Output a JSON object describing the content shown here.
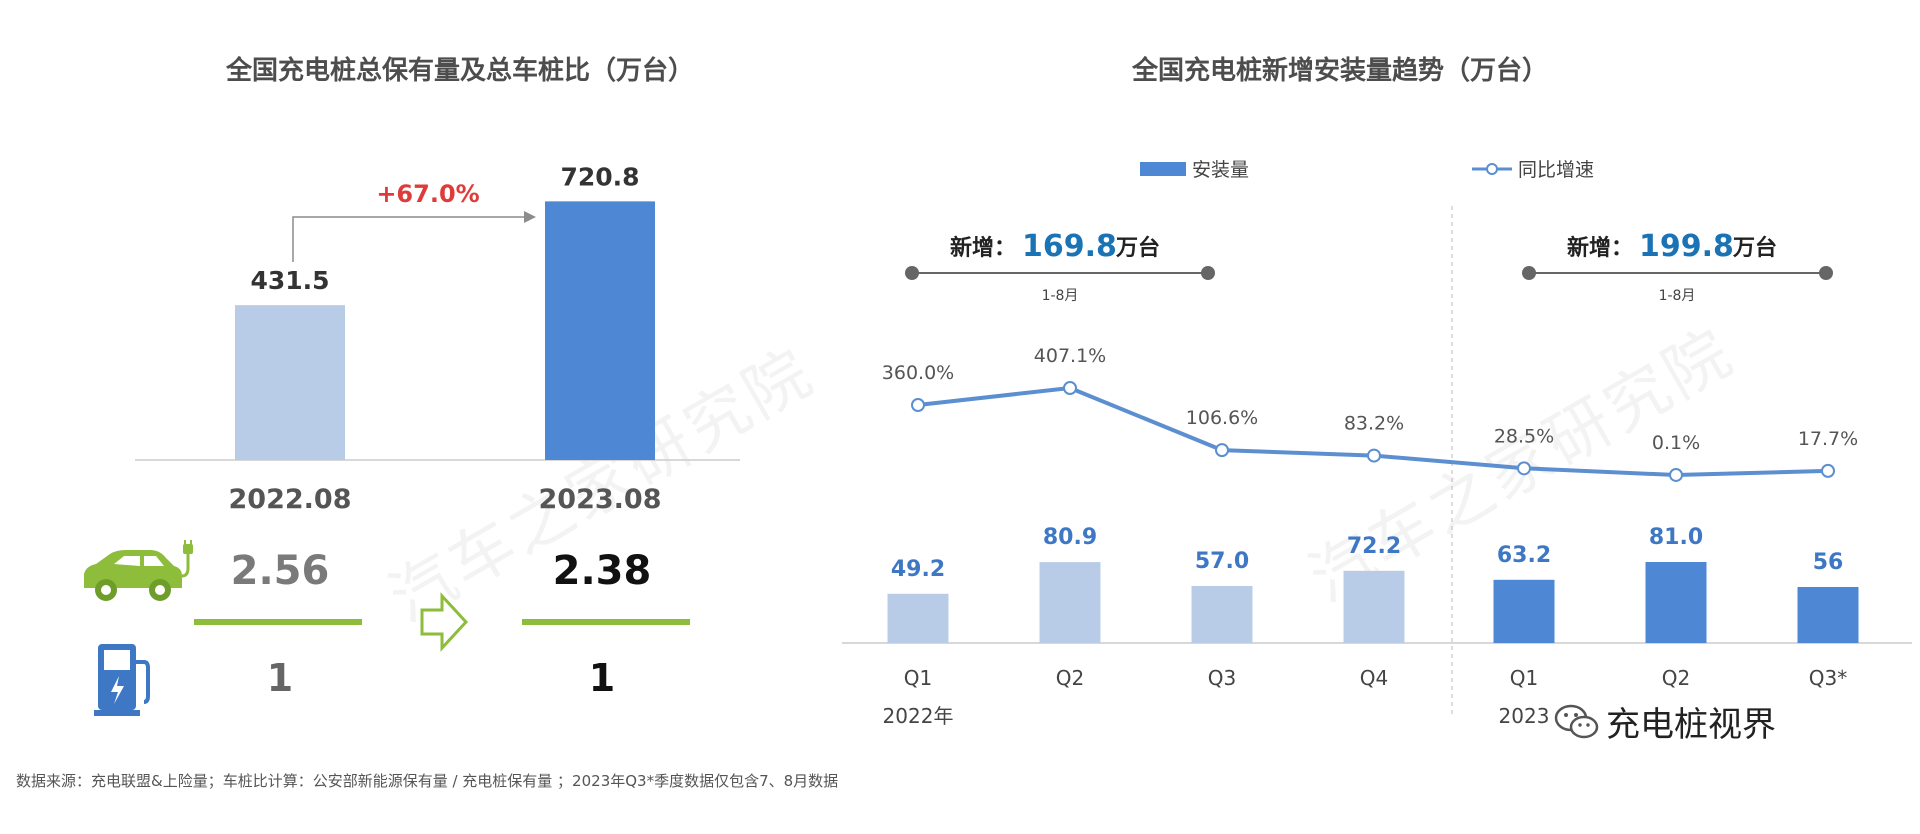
{
  "left_panel": {
    "title": "全国充电桩总保有量及总车桩比（万台）",
    "growth_label": "+67.0%",
    "ratio": {
      "before_value": "2.56",
      "after_value": "2.38",
      "before_base": "1",
      "after_base": "1"
    }
  },
  "right_panel": {
    "title": "全国充电桩新增安装量趋势（万台）",
    "year_2022": "2022年",
    "year_2023_partial": "2023",
    "summary_2022": {
      "prefix": "新增：",
      "value": "169.8",
      "unit": "万台",
      "period": "1-8月"
    },
    "summary_2023": {
      "prefix": "新增：",
      "value": "199.8",
      "unit": "万台",
      "period": "1-8月"
    }
  },
  "source_note": "数据来源：充电联盟&上险量；车桩比计算：公安部新能源保有量 / 充电桩保有量 ；2023年Q3*季度数据仅包含7、8月数据",
  "brand_text": "充电桩视界",
  "colors": {
    "light_bar": "#b8cce8",
    "dark_bar": "#4e88d4",
    "line": "#5b8fd0",
    "growth_red": "#e03b3b",
    "accent_green": "#8dbd3b",
    "label_blue": "#3e78c4",
    "summary_blue": "#1a73b5"
  },
  "chart_data": [
    {
      "type": "bar",
      "title": "全国充电桩总保有量及总车桩比（万台）",
      "categories": [
        "2022.08",
        "2023.08"
      ],
      "values": [
        431.5,
        720.8
      ],
      "value_labels": [
        "431.5",
        "720.8"
      ],
      "ylim": [
        0,
        850
      ]
    },
    {
      "type": "bar",
      "title": "全国充电桩新增安装量趋势（万台）",
      "categories": [
        "Q1",
        "Q2",
        "Q3",
        "Q4",
        "Q1",
        "Q2",
        "Q3*"
      ],
      "legend": [
        "安装量",
        "同比增速"
      ],
      "legend_position": "top",
      "series": [
        {
          "name": "安装量",
          "type": "bar",
          "values": [
            49.2,
            80.9,
            57.0,
            72.2,
            63.2,
            81.0,
            56
          ],
          "value_labels": [
            "49.2",
            "80.9",
            "57.0",
            "72.2",
            "63.2",
            "81.0",
            "56"
          ],
          "period": [
            "2022",
            "2022",
            "2022",
            "2022",
            "2023",
            "2023",
            "2023"
          ]
        },
        {
          "name": "同比增速",
          "type": "line",
          "values": [
            360.0,
            407.1,
            106.6,
            83.2,
            28.5,
            0.1,
            17.7
          ],
          "value_labels": [
            "360.0%",
            "407.1%",
            "106.6%",
            "83.2%",
            "28.5%",
            "0.1%",
            "17.7%"
          ]
        }
      ]
    }
  ]
}
